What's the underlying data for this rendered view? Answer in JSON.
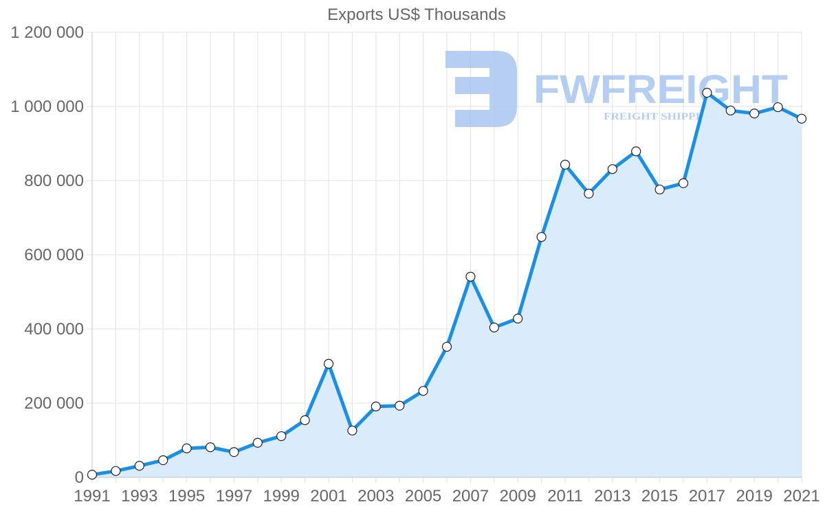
{
  "chart_data": {
    "type": "line",
    "title": "Exports US$ Thousands",
    "xlabel": "",
    "ylabel": "",
    "x": [
      1991,
      1992,
      1993,
      1994,
      1995,
      1996,
      1997,
      1998,
      1999,
      2000,
      2001,
      2002,
      2003,
      2004,
      2005,
      2006,
      2007,
      2008,
      2009,
      2010,
      2011,
      2012,
      2013,
      2014,
      2015,
      2016,
      2017,
      2018,
      2019,
      2020,
      2021
    ],
    "series": [
      {
        "name": "Exports US$ Thousands",
        "values": [
          7000,
          17000,
          31000,
          46000,
          78000,
          81000,
          68000,
          93000,
          111000,
          154000,
          306000,
          126000,
          191000,
          193000,
          233000,
          352000,
          541000,
          404000,
          428000,
          648000,
          843000,
          765000,
          831000,
          879000,
          776000,
          793000,
          1037000,
          989000,
          981000,
          998000,
          967000
        ]
      }
    ],
    "ylim": [
      0,
      1200000
    ],
    "y_ticks": [
      "0",
      "200 000",
      "400 000",
      "600 000",
      "800 000",
      "1 000 000",
      "1 200 000"
    ],
    "x_tick_labels": [
      "1991",
      "1993",
      "1995",
      "1997",
      "1999",
      "2001",
      "2003",
      "2005",
      "2007",
      "2009",
      "2011",
      "2013",
      "2015",
      "2017",
      "2019",
      "2021"
    ],
    "grid": true,
    "legend": "none",
    "fill": true,
    "colors": {
      "line": "#1a8fe8",
      "fill": "#d8ebfc",
      "grid": "#e0e0e0",
      "text": "#666666",
      "point_fill": "#ffffff",
      "point_stroke": "#222222"
    }
  },
  "watermark": {
    "brand": "FWFREIGHT",
    "tagline": "FREIGHT SHIPPING",
    "color": "#a8c5f0"
  }
}
